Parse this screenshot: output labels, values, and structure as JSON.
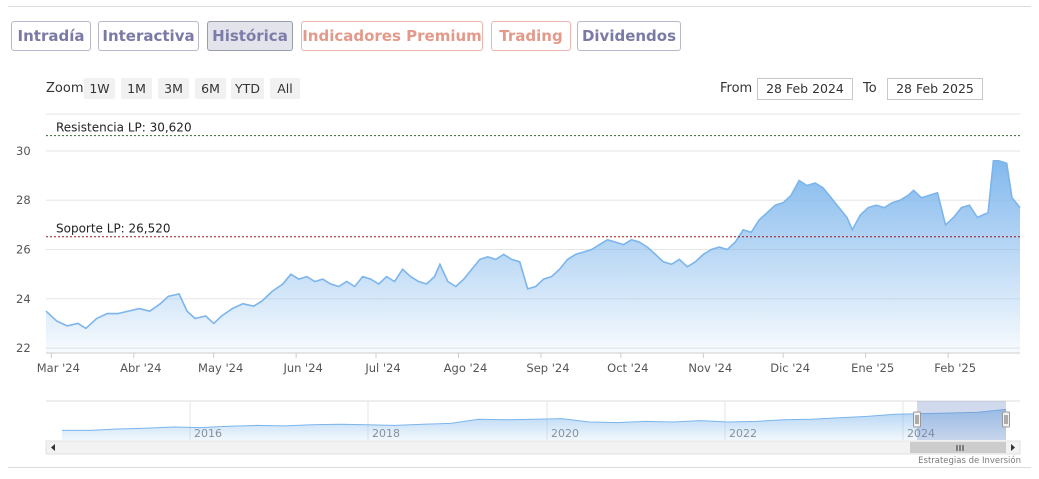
{
  "tabs": [
    {
      "label": "Intradía",
      "variant": "default"
    },
    {
      "label": "Interactiva",
      "variant": "default"
    },
    {
      "label": "Histórica",
      "variant": "active"
    },
    {
      "label": "Indicadores Premium",
      "variant": "salmon"
    },
    {
      "label": "Trading",
      "variant": "salmon"
    },
    {
      "label": "Dividendos",
      "variant": "default"
    }
  ],
  "zoom": {
    "label": "Zoom",
    "options": [
      "1W",
      "1M",
      "3M",
      "6M",
      "YTD",
      "All"
    ]
  },
  "range": {
    "from_label": "From",
    "from_value": "28 Feb 2024",
    "to_label": "To",
    "to_value": "28 Feb 2025"
  },
  "watermark": "Estrategias de Inversión",
  "colors": {
    "line": "#7cb5ec",
    "fill_top": "#7cb5ec",
    "resistance": "#2e6b2e",
    "support": "#a01818",
    "tab_text": "#7b7aa6",
    "tab_salmon": "#e39a8a"
  },
  "chart_data": {
    "type": "area",
    "ylim": [
      21.8,
      31.5
    ],
    "yticks": [
      22,
      24,
      26,
      28,
      30
    ],
    "xticks": [
      "Mar '24",
      "Abr '24",
      "May '24",
      "Jun '24",
      "Jul '24",
      "Ago '24",
      "Sep '24",
      "Oct '24",
      "Nov '24",
      "Dic '24",
      "Ene '25",
      "Feb '25"
    ],
    "xtick_dates": [
      "2024-03-01",
      "2024-04-01",
      "2024-05-01",
      "2024-06-01",
      "2024-07-01",
      "2024-08-01",
      "2024-09-01",
      "2024-10-01",
      "2024-11-01",
      "2024-12-01",
      "2025-01-01",
      "2025-02-01"
    ],
    "x_range": [
      "2024-02-28",
      "2025-02-28"
    ],
    "series": [
      {
        "values": [
          [
            "2024-02-28",
            23.5
          ],
          [
            "2024-03-03",
            23.1
          ],
          [
            "2024-03-07",
            22.9
          ],
          [
            "2024-03-11",
            23.0
          ],
          [
            "2024-03-14",
            22.8
          ],
          [
            "2024-03-18",
            23.2
          ],
          [
            "2024-03-22",
            23.4
          ],
          [
            "2024-03-26",
            23.4
          ],
          [
            "2024-03-30",
            23.5
          ],
          [
            "2024-04-03",
            23.6
          ],
          [
            "2024-04-07",
            23.5
          ],
          [
            "2024-04-11",
            23.8
          ],
          [
            "2024-04-14",
            24.1
          ],
          [
            "2024-04-18",
            24.2
          ],
          [
            "2024-04-21",
            23.5
          ],
          [
            "2024-04-24",
            23.2
          ],
          [
            "2024-04-28",
            23.3
          ],
          [
            "2024-05-01",
            23.0
          ],
          [
            "2024-05-04",
            23.3
          ],
          [
            "2024-05-08",
            23.6
          ],
          [
            "2024-05-12",
            23.8
          ],
          [
            "2024-05-16",
            23.7
          ],
          [
            "2024-05-19",
            23.9
          ],
          [
            "2024-05-23",
            24.3
          ],
          [
            "2024-05-27",
            24.6
          ],
          [
            "2024-05-30",
            25.0
          ],
          [
            "2024-06-02",
            24.8
          ],
          [
            "2024-06-05",
            24.9
          ],
          [
            "2024-06-08",
            24.7
          ],
          [
            "2024-06-11",
            24.8
          ],
          [
            "2024-06-14",
            24.6
          ],
          [
            "2024-06-17",
            24.5
          ],
          [
            "2024-06-20",
            24.7
          ],
          [
            "2024-06-23",
            24.5
          ],
          [
            "2024-06-26",
            24.9
          ],
          [
            "2024-06-29",
            24.8
          ],
          [
            "2024-07-02",
            24.6
          ],
          [
            "2024-07-05",
            24.9
          ],
          [
            "2024-07-08",
            24.7
          ],
          [
            "2024-07-11",
            25.2
          ],
          [
            "2024-07-14",
            24.9
          ],
          [
            "2024-07-17",
            24.7
          ],
          [
            "2024-07-20",
            24.6
          ],
          [
            "2024-07-23",
            24.9
          ],
          [
            "2024-07-25",
            25.4
          ],
          [
            "2024-07-28",
            24.7
          ],
          [
            "2024-07-31",
            24.5
          ],
          [
            "2024-08-03",
            24.8
          ],
          [
            "2024-08-06",
            25.2
          ],
          [
            "2024-08-09",
            25.6
          ],
          [
            "2024-08-12",
            25.7
          ],
          [
            "2024-08-15",
            25.6
          ],
          [
            "2024-08-18",
            25.8
          ],
          [
            "2024-08-21",
            25.6
          ],
          [
            "2024-08-24",
            25.5
          ],
          [
            "2024-08-27",
            24.4
          ],
          [
            "2024-08-30",
            24.5
          ],
          [
            "2024-09-02",
            24.8
          ],
          [
            "2024-09-05",
            24.9
          ],
          [
            "2024-09-08",
            25.2
          ],
          [
            "2024-09-11",
            25.6
          ],
          [
            "2024-09-14",
            25.8
          ],
          [
            "2024-09-17",
            25.9
          ],
          [
            "2024-09-20",
            26.0
          ],
          [
            "2024-09-23",
            26.2
          ],
          [
            "2024-09-26",
            26.4
          ],
          [
            "2024-09-29",
            26.3
          ],
          [
            "2024-10-02",
            26.2
          ],
          [
            "2024-10-05",
            26.4
          ],
          [
            "2024-10-08",
            26.3
          ],
          [
            "2024-10-11",
            26.1
          ],
          [
            "2024-10-14",
            25.8
          ],
          [
            "2024-10-17",
            25.5
          ],
          [
            "2024-10-20",
            25.4
          ],
          [
            "2024-10-23",
            25.6
          ],
          [
            "2024-10-26",
            25.3
          ],
          [
            "2024-10-29",
            25.5
          ],
          [
            "2024-11-01",
            25.8
          ],
          [
            "2024-11-04",
            26.0
          ],
          [
            "2024-11-07",
            26.1
          ],
          [
            "2024-11-10",
            26.0
          ],
          [
            "2024-11-13",
            26.3
          ],
          [
            "2024-11-16",
            26.8
          ],
          [
            "2024-11-19",
            26.7
          ],
          [
            "2024-11-22",
            27.2
          ],
          [
            "2024-11-25",
            27.5
          ],
          [
            "2024-11-28",
            27.8
          ],
          [
            "2024-12-01",
            27.9
          ],
          [
            "2024-12-04",
            28.2
          ],
          [
            "2024-12-07",
            28.8
          ],
          [
            "2024-12-10",
            28.6
          ],
          [
            "2024-12-13",
            28.7
          ],
          [
            "2024-12-16",
            28.5
          ],
          [
            "2024-12-19",
            28.1
          ],
          [
            "2024-12-22",
            27.7
          ],
          [
            "2024-12-25",
            27.3
          ],
          [
            "2024-12-27",
            26.8
          ],
          [
            "2024-12-30",
            27.4
          ],
          [
            "2025-01-02",
            27.7
          ],
          [
            "2025-01-05",
            27.8
          ],
          [
            "2025-01-08",
            27.7
          ],
          [
            "2025-01-11",
            27.9
          ],
          [
            "2025-01-14",
            28.0
          ],
          [
            "2025-01-17",
            28.2
          ],
          [
            "2025-01-19",
            28.4
          ],
          [
            "2025-01-22",
            28.1
          ],
          [
            "2025-01-25",
            28.2
          ],
          [
            "2025-01-28",
            28.3
          ],
          [
            "2025-01-31",
            27.0
          ],
          [
            "2025-02-03",
            27.3
          ],
          [
            "2025-02-06",
            27.7
          ],
          [
            "2025-02-09",
            27.8
          ],
          [
            "2025-02-12",
            27.3
          ],
          [
            "2025-02-14",
            27.4
          ],
          [
            "2025-02-16",
            27.5
          ],
          [
            "2025-02-18",
            29.6
          ],
          [
            "2025-02-20",
            29.6
          ],
          [
            "2025-02-23",
            29.5
          ],
          [
            "2025-02-25",
            28.1
          ],
          [
            "2025-02-28",
            27.7
          ]
        ]
      }
    ],
    "lines": [
      {
        "label": "Resistencia LP: 30,620",
        "value": 30.62
      },
      {
        "label": "Soporte LP: 26,520",
        "value": 26.52
      }
    ],
    "navigator": {
      "years": [
        "2016",
        "2018",
        "2020",
        "2022",
        "2024"
      ],
      "values": [
        0.2,
        0.2,
        0.25,
        0.28,
        0.32,
        0.3,
        0.35,
        0.38,
        0.36,
        0.4,
        0.42,
        0.4,
        0.38,
        0.42,
        0.45,
        0.6,
        0.58,
        0.6,
        0.62,
        0.5,
        0.48,
        0.52,
        0.5,
        0.55,
        0.5,
        0.52,
        0.58,
        0.6,
        0.65,
        0.7,
        0.78,
        0.8,
        0.82,
        0.85,
        0.95
      ]
    }
  }
}
